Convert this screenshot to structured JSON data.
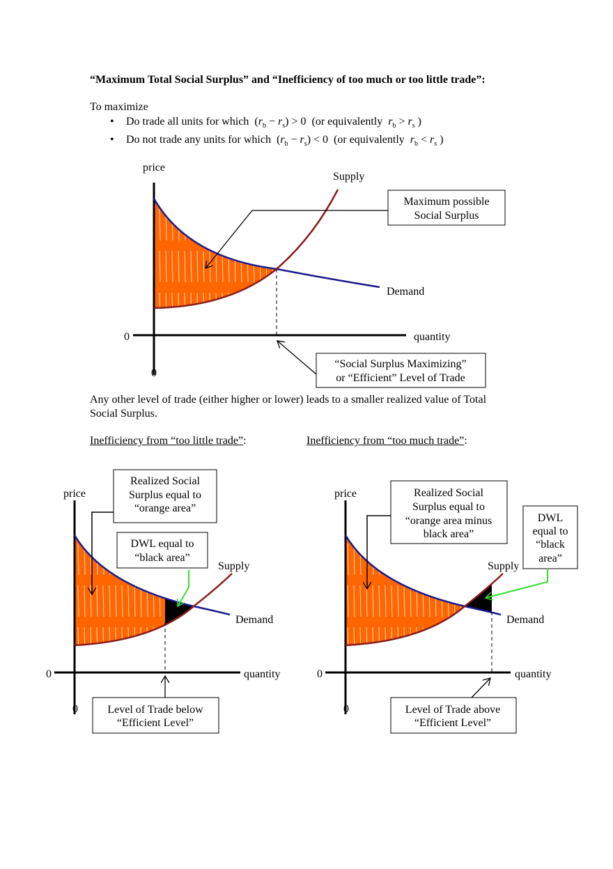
{
  "title": "“Maximum Total Social Surplus” and “Inefficiency of too much or too little trade”:",
  "intro": "To maximize",
  "bullets": [
    {
      "text": "Do trade all units for which",
      "expr": "(r_b − r_s) > 0",
      "alt": "(or equivalently  r_b > r_s )"
    },
    {
      "text": "Do not trade any units for which",
      "expr": "(r_b − r_s) < 0",
      "alt": "(or equivalently  r_b < r_s )"
    }
  ],
  "colors": {
    "surplus": "#FF6600",
    "demand": "#1A1A8C",
    "supply": "#8B1A1A",
    "dwl": "#000000",
    "pointer": "#33DD33"
  },
  "main_diagram": {
    "y_label": "price",
    "x_label": "quantity",
    "origin_x": "0",
    "origin_y": "0",
    "supply_label": "Supply",
    "demand_label": "Demand",
    "callout_1": [
      "Maximum possible",
      "Social Surplus"
    ],
    "callout_2": [
      "“Social Surplus Maximizing”",
      "or “Efficient” Level of Trade"
    ]
  },
  "paragraph": [
    "Any other level of trade (either higher or lower) leads to a smaller realized value of Total",
    "Social Surplus."
  ],
  "heading_left": "Inefficiency from “too little trade”",
  "heading_right": "Inefficiency from “too much trade”",
  "colon": ":",
  "left_diagram": {
    "y_label": "price",
    "x_label": "quantity",
    "origin_x": "0",
    "origin_y": "0",
    "supply_label": "Supply",
    "demand_label": "Demand",
    "callout_realized": [
      "Realized Social",
      "Surplus equal to",
      "“orange area”"
    ],
    "callout_dwl": [
      "DWL equal to",
      "“black area”"
    ],
    "callout_level": [
      "Level of Trade below",
      "“Efficient Level”"
    ]
  },
  "right_diagram": {
    "y_label": "price",
    "x_label": "quantity",
    "origin_x": "0",
    "origin_y": "0",
    "supply_label": "Supply",
    "demand_label": "Demand",
    "callout_realized": [
      "Realized Social",
      "Surplus equal to",
      "“orange area minus",
      "black area”"
    ],
    "callout_dwl": [
      "DWL",
      "equal to",
      "“black",
      "area”"
    ],
    "callout_level": [
      "Level of Trade above",
      "“Efficient Level”"
    ]
  }
}
